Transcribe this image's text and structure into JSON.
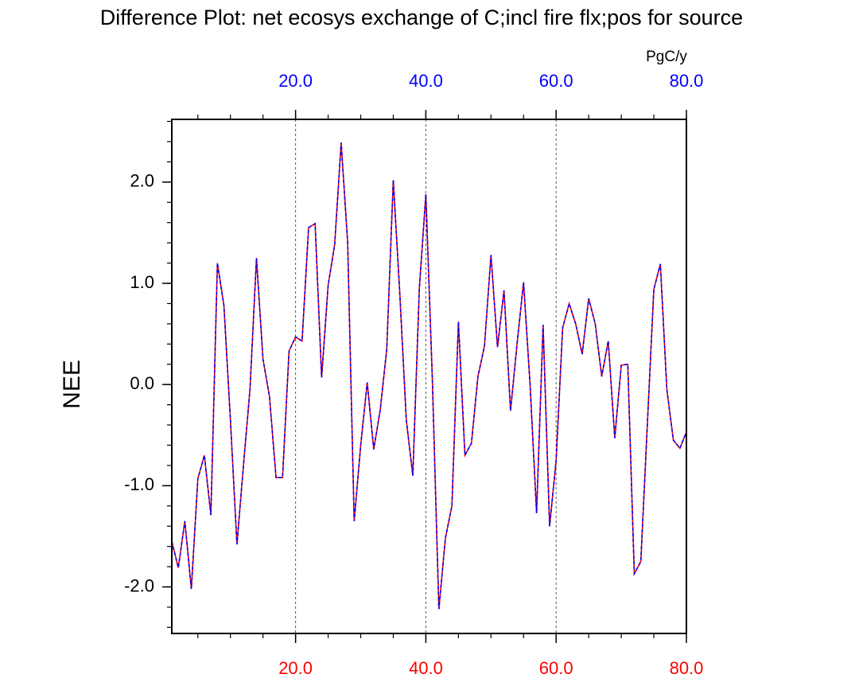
{
  "chart_data": {
    "type": "line",
    "title": "Difference Plot: net ecosys exchange of C;incl fire flx;pos for source",
    "y_label": "NEE",
    "units": "PgC/y",
    "x": [
      1,
      2,
      3,
      4,
      5,
      6,
      7,
      8,
      9,
      10,
      11,
      12,
      13,
      14,
      15,
      16,
      17,
      18,
      19,
      20,
      21,
      22,
      23,
      24,
      25,
      26,
      27,
      28,
      29,
      30,
      31,
      32,
      33,
      34,
      35,
      36,
      37,
      38,
      39,
      40,
      41,
      42,
      43,
      44,
      45,
      46,
      47,
      48,
      49,
      50,
      51,
      52,
      53,
      54,
      55,
      56,
      57,
      58,
      59,
      60,
      61,
      62,
      63,
      64,
      65,
      66,
      67,
      68,
      69,
      70,
      71,
      72,
      73,
      74,
      75,
      76,
      77,
      78,
      79,
      80
    ],
    "series": [
      {
        "color": "#ff0000",
        "dashed": false,
        "values": [
          -1.55,
          -1.81,
          -1.35,
          -2.02,
          -0.93,
          -0.7,
          -1.29,
          1.2,
          0.78,
          -0.35,
          -1.58,
          -0.8,
          -0.05,
          1.25,
          0.25,
          -0.12,
          -0.92,
          -0.92,
          0.33,
          0.47,
          0.43,
          1.55,
          1.59,
          0.07,
          0.98,
          1.38,
          2.39,
          1.4,
          -1.35,
          -0.6,
          0.02,
          -0.64,
          -0.25,
          0.35,
          2.02,
          0.9,
          -0.35,
          -0.9,
          0.95,
          1.88,
          0.05,
          -2.22,
          -1.52,
          -1.2,
          0.62,
          -0.7,
          -0.58,
          0.08,
          0.38,
          1.28,
          0.37,
          0.93,
          -0.26,
          0.4,
          1.01,
          0.0,
          -1.27,
          0.59,
          -1.4,
          -0.75,
          0.56,
          0.8,
          0.6,
          0.3,
          0.85,
          0.6,
          0.08,
          0.43,
          -0.53,
          0.19,
          0.2,
          -1.87,
          -1.75,
          -0.4,
          0.94,
          1.19,
          -0.05,
          -0.55,
          -0.63,
          -0.47
        ]
      },
      {
        "color": "#0000ff",
        "dashed": true,
        "values": [
          -1.55,
          -1.81,
          -1.35,
          -2.02,
          -0.93,
          -0.7,
          -1.29,
          1.2,
          0.78,
          -0.35,
          -1.58,
          -0.8,
          -0.05,
          1.25,
          0.25,
          -0.12,
          -0.92,
          -0.92,
          0.33,
          0.47,
          0.43,
          1.55,
          1.59,
          0.07,
          0.98,
          1.38,
          2.39,
          1.4,
          -1.35,
          -0.6,
          0.02,
          -0.64,
          -0.25,
          0.35,
          2.02,
          0.9,
          -0.35,
          -0.9,
          0.95,
          1.88,
          0.05,
          -2.22,
          -1.52,
          -1.2,
          0.62,
          -0.7,
          -0.58,
          0.08,
          0.38,
          1.28,
          0.37,
          0.93,
          -0.26,
          0.4,
          1.01,
          0.0,
          -1.27,
          0.59,
          -1.4,
          -0.75,
          0.56,
          0.8,
          0.6,
          0.3,
          0.85,
          0.6,
          0.08,
          0.43,
          -0.53,
          0.19,
          0.2,
          -1.87,
          -1.75,
          -0.4,
          0.94,
          1.19,
          -0.05,
          -0.55,
          -0.63,
          -0.47
        ]
      }
    ],
    "xlim": [
      1,
      80
    ],
    "ylim": [
      -2.46,
      2.62
    ],
    "xticks": [
      {
        "value": 20,
        "label": "20.0"
      },
      {
        "value": 40,
        "label": "40.0"
      },
      {
        "value": 60,
        "label": "60.0"
      },
      {
        "value": 80,
        "label": "80.0"
      }
    ],
    "yticks": [
      {
        "value": -2,
        "label": "-2.0"
      },
      {
        "value": -1,
        "label": "-1.0"
      },
      {
        "value": 0,
        "label": "0.0"
      },
      {
        "value": 1,
        "label": "1.0"
      },
      {
        "value": 2,
        "label": "2.0"
      }
    ],
    "x_minor_step": 5,
    "y_minor_step": 0.2,
    "bottom_tick_color": "#ff0000",
    "top_tick_color": "#0000ff",
    "x_grid": true
  }
}
